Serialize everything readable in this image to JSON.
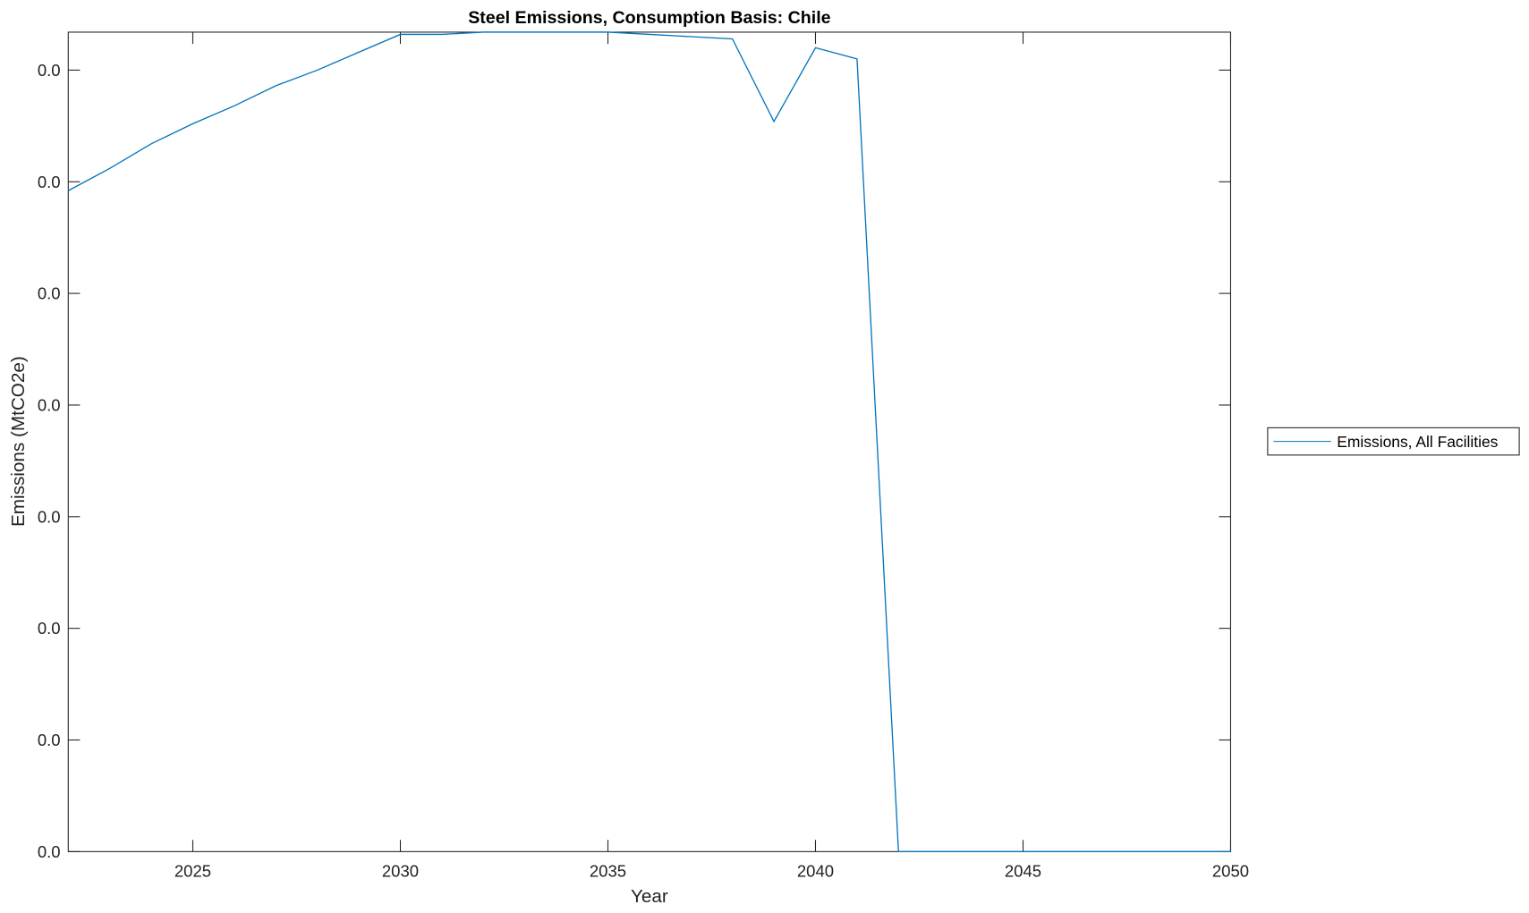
{
  "chart_data": {
    "type": "line",
    "title": "Steel Emissions, Consumption Basis: Chile",
    "xlabel": "Year",
    "ylabel": "Emissions (MtCO2e)",
    "xlim": [
      2022,
      2050
    ],
    "ylim": [
      0,
      0.0367
    ],
    "xticks": [
      2025,
      2030,
      2035,
      2040,
      2045,
      2050
    ],
    "xtick_labels": [
      "2025",
      "2030",
      "2035",
      "2040",
      "2045",
      "2050"
    ],
    "yticks": [
      0,
      0.005,
      0.01,
      0.015,
      0.02,
      0.025,
      0.03,
      0.035
    ],
    "ytick_labels": [
      "0.0",
      "0.0",
      "0.0",
      "0.0",
      "0.0",
      "0.0",
      "0.0",
      "0.0"
    ],
    "grid": false,
    "legend_position": "outside-right",
    "series": [
      {
        "name": "Emissions, All Facilities",
        "color": "#0072BD",
        "x": [
          2022,
          2023,
          2024,
          2025,
          2026,
          2027,
          2028,
          2029,
          2030,
          2031,
          2032,
          2033,
          2034,
          2035,
          2036,
          2037,
          2038,
          2039,
          2040,
          2041,
          2042,
          2043,
          2044,
          2045,
          2046,
          2047,
          2048,
          2049,
          2050
        ],
        "y": [
          0.0296,
          0.0306,
          0.0317,
          0.0326,
          0.0334,
          0.0343,
          0.035,
          0.0358,
          0.0366,
          0.0366,
          0.0367,
          0.0367,
          0.0367,
          0.0367,
          0.0366,
          0.0365,
          0.0364,
          0.0327,
          0.036,
          0.0355,
          0,
          0,
          0,
          0,
          0,
          0,
          0,
          0,
          0
        ]
      }
    ]
  }
}
